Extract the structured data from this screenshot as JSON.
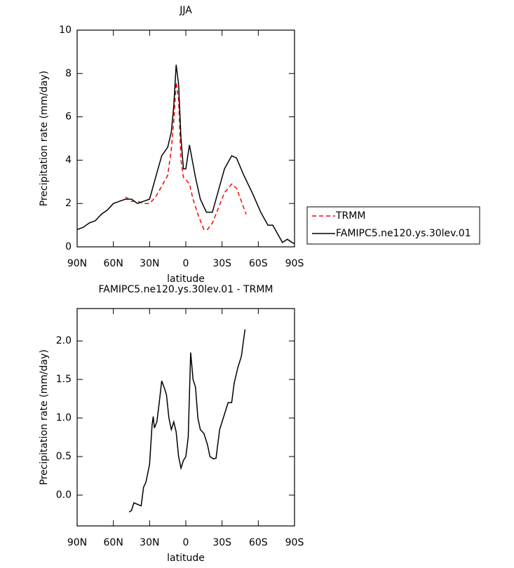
{
  "chart_data": [
    {
      "type": "line",
      "title": "JJA",
      "xlabel": "latitude",
      "ylabel": "Precipitation rate (mm/day)",
      "xlim": [
        90,
        -90
      ],
      "ylim": [
        0,
        10
      ],
      "xticks": [
        {
          "value": 90,
          "label": "90N"
        },
        {
          "value": 60,
          "label": "60N"
        },
        {
          "value": 30,
          "label": "30N"
        },
        0,
        {
          "value": -30,
          "label": "30S"
        },
        {
          "value": -60,
          "label": "60S"
        },
        {
          "value": -90,
          "label": "90S"
        }
      ],
      "yticks": [
        0,
        2,
        4,
        6,
        8,
        10
      ],
      "legend": "right",
      "series": [
        {
          "name": "TRMM",
          "color": "#ff0000",
          "linestyle": "dashed",
          "x": [
            50,
            45,
            40,
            35,
            30,
            25,
            20,
            15,
            12,
            10,
            8,
            6,
            4,
            2,
            0,
            -3,
            -6,
            -10,
            -15,
            -18,
            -22,
            -27,
            -32,
            -38,
            -42,
            -46,
            -50
          ],
          "values": [
            2.3,
            2.1,
            2.1,
            2.0,
            2.0,
            2.3,
            2.8,
            3.3,
            4.5,
            5.8,
            7.6,
            6.8,
            4.0,
            3.2,
            3.1,
            2.9,
            2.2,
            1.5,
            0.8,
            0.8,
            1.1,
            1.8,
            2.5,
            2.9,
            2.7,
            2.1,
            1.5
          ]
        },
        {
          "name": "FAMIPC5.ne120.ys.30lev.01",
          "color": "#000000",
          "linestyle": "solid",
          "x": [
            90,
            85,
            80,
            75,
            70,
            65,
            60,
            55,
            50,
            45,
            40,
            35,
            30,
            25,
            20,
            15,
            12,
            10,
            8,
            6,
            4,
            2,
            0,
            -3,
            -5,
            -8,
            -12,
            -17,
            -22,
            -27,
            -32,
            -38,
            -42,
            -48,
            -55,
            -62,
            -68,
            -72,
            -76,
            -80,
            -84,
            -88,
            -90
          ],
          "values": [
            0.8,
            0.9,
            1.1,
            1.2,
            1.5,
            1.7,
            2.0,
            2.1,
            2.2,
            2.2,
            2.0,
            2.1,
            2.2,
            3.2,
            4.2,
            4.6,
            5.3,
            6.5,
            8.4,
            7.5,
            5.0,
            3.6,
            3.6,
            4.7,
            4.1,
            3.2,
            2.2,
            1.6,
            1.6,
            2.6,
            3.6,
            4.2,
            4.1,
            3.3,
            2.5,
            1.6,
            1.0,
            1.0,
            0.6,
            0.2,
            0.35,
            0.2,
            0.15
          ]
        }
      ]
    },
    {
      "type": "line",
      "title": "FAMIPC5.ne120.ys.30lev.01 - TRMM",
      "xlabel": "latitude",
      "ylabel": "Precipitation rate (mm/day)",
      "xlim": [
        90,
        -90
      ],
      "ylim": [
        -0.4,
        2.42
      ],
      "xticks": [
        {
          "value": 90,
          "label": "90N"
        },
        {
          "value": 60,
          "label": "60N"
        },
        {
          "value": 30,
          "label": "30N"
        },
        0,
        {
          "value": -30,
          "label": "30S"
        },
        {
          "value": -60,
          "label": "60S"
        },
        {
          "value": -90,
          "label": "90S"
        }
      ],
      "yticks": [
        {
          "value": 0,
          "label": "0.0"
        },
        0.5,
        {
          "value": 1,
          "label": "1.0"
        },
        1.5,
        {
          "value": 2,
          "label": "2.0"
        }
      ],
      "series": [
        {
          "color": "#000000",
          "linestyle": "solid",
          "x": [
            47,
            45,
            43,
            40,
            37,
            35,
            33,
            30,
            28,
            27,
            26,
            24,
            22,
            20,
            18,
            16,
            14,
            12,
            10,
            8,
            6,
            4,
            2,
            0,
            -2,
            -4,
            -6,
            -8,
            -10,
            -12,
            -15,
            -18,
            -20,
            -23,
            -25,
            -28,
            -30,
            -35,
            -38,
            -40,
            -43,
            -46,
            -49
          ],
          "values": [
            -0.22,
            -0.2,
            -0.1,
            -0.12,
            -0.14,
            0.1,
            0.17,
            0.4,
            0.9,
            1.02,
            0.87,
            0.95,
            1.2,
            1.48,
            1.4,
            1.3,
            1.0,
            0.85,
            0.95,
            0.82,
            0.5,
            0.35,
            0.45,
            0.5,
            0.75,
            1.85,
            1.5,
            1.4,
            1.0,
            0.85,
            0.8,
            0.65,
            0.5,
            0.47,
            0.48,
            0.85,
            0.95,
            1.2,
            1.2,
            1.45,
            1.65,
            1.8,
            2.15
          ]
        }
      ]
    }
  ]
}
